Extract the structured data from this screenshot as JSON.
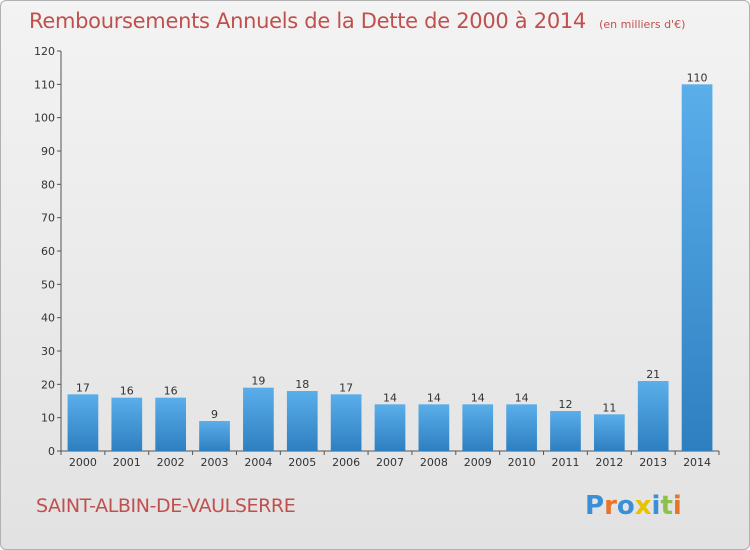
{
  "title": "Remboursements Annuels de la Dette de 2000 à 2014",
  "subtitle": "(en milliers d'€)",
  "commune": "SAINT-ALBIN-DE-VAULSERRE",
  "logo": {
    "text": "Proxiti",
    "letter_colors": [
      "#3a8fd6",
      "#e8742a",
      "#3a8fd6",
      "#e8c200",
      "#3a8fd6",
      "#8bc34a",
      "#e8742a"
    ]
  },
  "colors": {
    "bar_light": "#5aaeea",
    "bar_dark": "#2e7fc0",
    "title": "#c0504d"
  },
  "chart_data": {
    "type": "bar",
    "categories": [
      "2000",
      "2001",
      "2002",
      "2003",
      "2004",
      "2005",
      "2006",
      "2007",
      "2008",
      "2009",
      "2010",
      "2011",
      "2012",
      "2013",
      "2014"
    ],
    "values": [
      17,
      16,
      16,
      9,
      19,
      18,
      17,
      14,
      14,
      14,
      14,
      12,
      11,
      21,
      110
    ],
    "ylim": [
      0,
      120
    ],
    "yticks": [
      0,
      10,
      20,
      30,
      40,
      50,
      60,
      70,
      80,
      90,
      100,
      110,
      120
    ],
    "grid": false,
    "data_labels": true
  }
}
